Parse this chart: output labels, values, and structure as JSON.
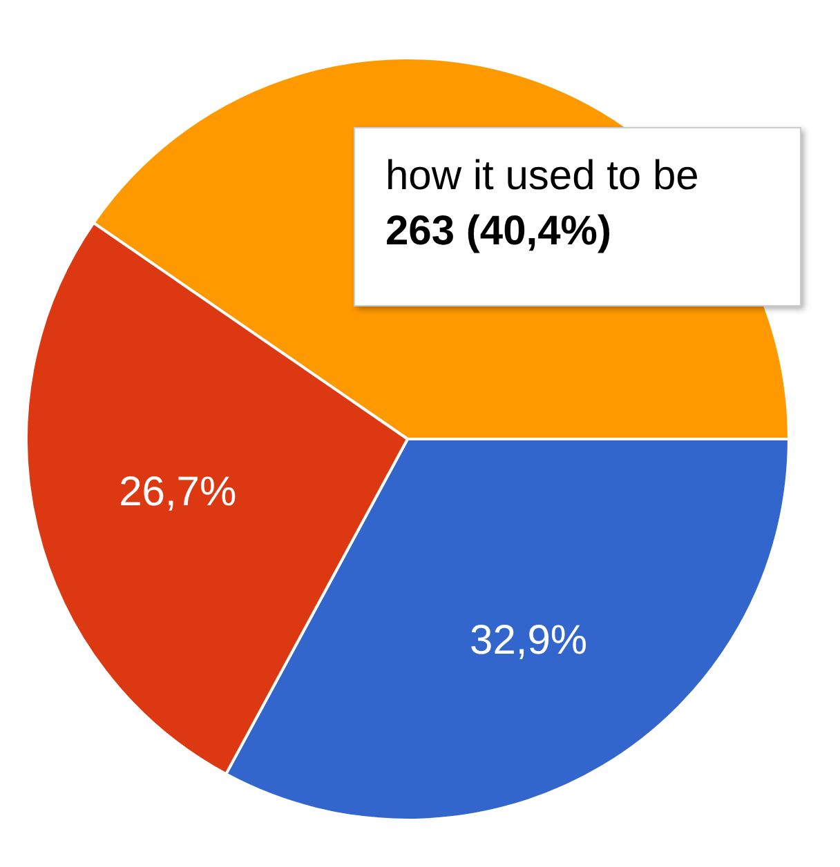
{
  "chart_data": {
    "type": "pie",
    "categories": [
      "how it used to be",
      null,
      null
    ],
    "values": [
      40.4,
      32.9,
      26.7
    ],
    "colors": [
      "#ff9900",
      "#3366cc",
      "#dc3912"
    ],
    "value_labels": [
      "263 (40,4%)",
      "32,9%",
      "26,7%"
    ],
    "legend": false
  }
}
